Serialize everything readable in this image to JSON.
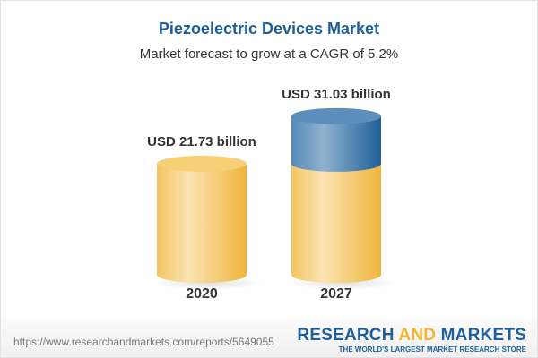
{
  "title": "Piezoelectric Devices Market",
  "subtitle": "Market forecast to grow at a CAGR of 5.2%",
  "chart_data": {
    "type": "bar",
    "style": "3d-cylinder",
    "categories": [
      "2020",
      "2027"
    ],
    "values": [
      21.73,
      31.03
    ],
    "data_labels": [
      "USD 21.73 billion",
      "USD 31.03 billion"
    ],
    "unit": "USD billion",
    "colors": {
      "base": "#f2c35a",
      "growth": "#3f7bb0"
    },
    "grid": false,
    "legend": "none"
  },
  "footer": {
    "url": "https://www.researchandmarkets.com/reports/5649055",
    "brand_part1": "RESEARCH ",
    "brand_part2": "AND",
    "brand_part3": " MARKETS",
    "tagline": "THE WORLD'S LARGEST MARKET RESEARCH STORE"
  }
}
